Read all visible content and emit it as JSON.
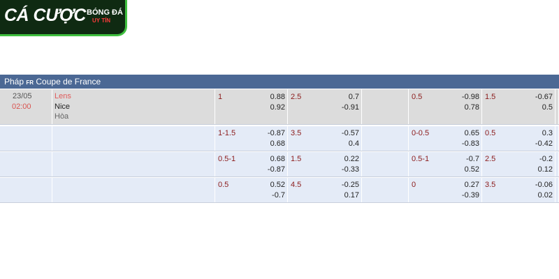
{
  "logo": {
    "main": "CÁ CƯỢC",
    "top": "BÓNG ĐÁ",
    "bottom": "UY TÍN"
  },
  "header": {
    "country": "Pháp",
    "flag": "FR",
    "competition": "Coupe de France"
  },
  "match": {
    "date": "23/05",
    "time": "02:00",
    "home": "Lens",
    "away": "Nice",
    "draw": "Hòa"
  },
  "rows": [
    [
      {
        "line": "1",
        "top": "0.88",
        "bottom": "0.92"
      },
      {
        "line": "2.5",
        "top": "0.7",
        "bottom": "-0.91"
      },
      {
        "line": "0.5",
        "top": "-0.98",
        "bottom": "0.78"
      },
      {
        "line": "1.5",
        "top": "-0.67",
        "bottom": "0.5"
      }
    ],
    [
      {
        "line": "1-1.5",
        "top": "-0.87",
        "bottom": "0.68"
      },
      {
        "line": "3.5",
        "top": "-0.57",
        "bottom": "0.4"
      },
      {
        "line": "0-0.5",
        "top": "0.65",
        "bottom": "-0.83"
      },
      {
        "line": "0.5",
        "top": "0.3",
        "bottom": "-0.42"
      }
    ],
    [
      {
        "line": "0.5-1",
        "top": "0.68",
        "bottom": "-0.87"
      },
      {
        "line": "1.5",
        "top": "0.22",
        "bottom": "-0.33"
      },
      {
        "line": "0.5-1",
        "top": "-0.7",
        "bottom": "0.52"
      },
      {
        "line": "2.5",
        "top": "-0.2",
        "bottom": "0.12"
      }
    ],
    [
      {
        "line": "0.5",
        "top": "0.52",
        "bottom": "-0.7"
      },
      {
        "line": "4.5",
        "top": "-0.25",
        "bottom": "0.17"
      },
      {
        "line": "0",
        "top": "0.27",
        "bottom": "-0.39"
      },
      {
        "line": "3.5",
        "top": "-0.06",
        "bottom": "0.02"
      }
    ]
  ]
}
